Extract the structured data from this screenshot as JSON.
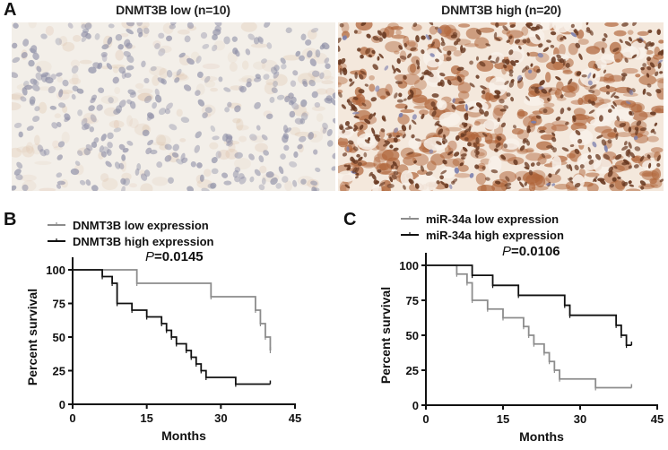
{
  "figure": {
    "panel_a": {
      "letter": "A",
      "images": [
        {
          "title": "DNMT3B low (n=10)",
          "stain": "weak",
          "background": "#f3efe9",
          "nuclei_color": "#8d8ea6",
          "stain_color": "#d8b89c"
        },
        {
          "title": "DNMT3B high (n=20)",
          "stain": "strong",
          "background": "#f4e8dc",
          "nuclei_color": "#6a3a22",
          "stain_color": "#b0653a"
        }
      ]
    },
    "panel_b": {
      "letter": "B"
    },
    "panel_c": {
      "letter": "C"
    }
  },
  "colors": {
    "low_series": "#8c8c8c",
    "high_series": "#111111",
    "axis": "#111111"
  },
  "chart_data": [
    {
      "type": "line",
      "subtype": "kaplan-meier step",
      "panel": "B",
      "title": "",
      "annotation": "P=0.0145",
      "annotation_p": "P",
      "annotation_value": "=0.0145",
      "xlabel": "Months",
      "ylabel": "Percent survival",
      "xlim": [
        0,
        45
      ],
      "ylim": [
        0,
        100
      ],
      "xticks": [
        0,
        15,
        30,
        45
      ],
      "yticks": [
        0,
        25,
        50,
        75,
        100
      ],
      "grid": false,
      "legend_position": "top-left",
      "series": [
        {
          "name": "DNMT3B low expression",
          "color": "#8c8c8c",
          "steps": [
            [
              0,
              100
            ],
            [
              13,
              90
            ],
            [
              28,
              80
            ],
            [
              37,
              70
            ],
            [
              38,
              60
            ],
            [
              39,
              50
            ],
            [
              40,
              40
            ]
          ],
          "end_x": 40
        },
        {
          "name": "DNMT3B high expression",
          "color": "#111111",
          "steps": [
            [
              0,
              100
            ],
            [
              6,
              95
            ],
            [
              8,
              90
            ],
            [
              9,
              75
            ],
            [
              12,
              70
            ],
            [
              15,
              65
            ],
            [
              18,
              60
            ],
            [
              19,
              55
            ],
            [
              20,
              50
            ],
            [
              21,
              45
            ],
            [
              23,
              40
            ],
            [
              24,
              35
            ],
            [
              25,
              30
            ],
            [
              26,
              25
            ],
            [
              27,
              20
            ],
            [
              33,
              15
            ]
          ],
          "end_x": 40
        }
      ]
    },
    {
      "type": "line",
      "subtype": "kaplan-meier step",
      "panel": "C",
      "title": "",
      "annotation": "P=0.0106",
      "annotation_p": "P",
      "annotation_value": "=0.0106",
      "xlabel": "Months",
      "ylabel": "Percent survival",
      "xlim": [
        0,
        45
      ],
      "ylim": [
        0,
        100
      ],
      "xticks": [
        0,
        15,
        30,
        45
      ],
      "yticks": [
        0,
        25,
        50,
        75,
        100
      ],
      "grid": false,
      "legend_position": "top-left",
      "series": [
        {
          "name": "miR-34a low expression",
          "color": "#8c8c8c",
          "steps": [
            [
              0,
              100
            ],
            [
              6,
              93.75
            ],
            [
              8,
              87.5
            ],
            [
              9,
              75
            ],
            [
              12,
              68.75
            ],
            [
              15,
              62.5
            ],
            [
              19,
              56.25
            ],
            [
              20,
              50
            ],
            [
              21,
              43.75
            ],
            [
              23,
              37.5
            ],
            [
              24,
              31.25
            ],
            [
              25,
              25
            ],
            [
              26,
              18.75
            ],
            [
              33,
              12.5
            ]
          ],
          "end_x": 40
        },
        {
          "name": "miR-34a high expression",
          "color": "#111111",
          "steps": [
            [
              0,
              100
            ],
            [
              9,
              92.86
            ],
            [
              13,
              85.71
            ],
            [
              18,
              78.57
            ],
            [
              27,
              71.43
            ],
            [
              28,
              64.29
            ],
            [
              37,
              57.14
            ],
            [
              38,
              50
            ],
            [
              39,
              42.86
            ]
          ],
          "end_x": 40
        }
      ]
    }
  ]
}
